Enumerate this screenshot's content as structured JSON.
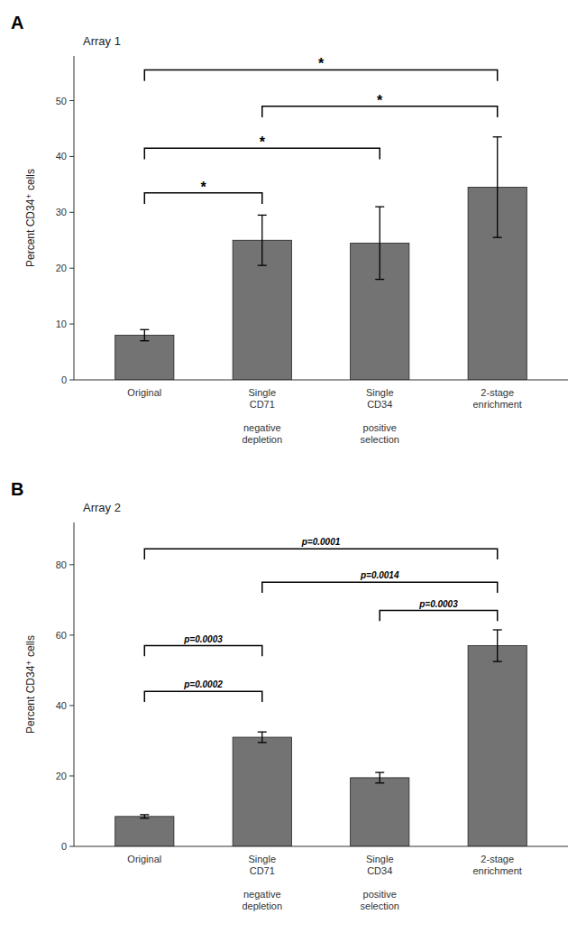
{
  "chart_data": [
    {
      "type": "bar",
      "panel_label": "A",
      "title": "Array 1",
      "categories": [
        "Original",
        "Single\nCD71\n\nnegative\ndepletion",
        "Single\nCD34\n\npositive\nselection",
        "2-stage\nenrichment"
      ],
      "values": [
        8.0,
        25.0,
        24.5,
        34.5
      ],
      "errors": [
        1.0,
        4.5,
        6.5,
        9.0
      ],
      "color": "#737373",
      "ylim": [
        0,
        58
      ],
      "yticks": [
        0,
        10,
        20,
        30,
        40,
        50
      ],
      "ylabel": "Percent CD34⁺ cells",
      "grid": false,
      "annotations": [
        {
          "from": 0,
          "to": 1,
          "y": 33.5,
          "drop": 2.0,
          "label": "*"
        },
        {
          "from": 0,
          "to": 2,
          "y": 41.5,
          "drop": 2.0,
          "label": "*"
        },
        {
          "from": 1,
          "to": 3,
          "y": 49.0,
          "drop": 2.0,
          "label": "*"
        },
        {
          "from": 0,
          "to": 3,
          "y": 55.5,
          "drop": 2.0,
          "label": "*"
        }
      ]
    },
    {
      "type": "bar",
      "panel_label": "B",
      "title": "Array 2",
      "categories": [
        "Original",
        "Single\nCD71\n\nnegative\ndepletion",
        "Single\nCD34\n\npositive\nselection",
        "2-stage\nenrichment"
      ],
      "values": [
        8.5,
        31.0,
        19.5,
        57.0
      ],
      "errors": [
        0.5,
        1.5,
        1.5,
        4.5
      ],
      "color": "#737373",
      "ylim": [
        0,
        92
      ],
      "yticks": [
        0,
        20,
        40,
        60,
        80
      ],
      "ylabel": "Percent CD34⁺ cells",
      "grid": false,
      "annotations": [
        {
          "from": 0,
          "to": 1,
          "y": 44.0,
          "drop": 3.0,
          "label": "p=0.0002"
        },
        {
          "from": 0,
          "to": 1,
          "y": 57.0,
          "drop": 3.0,
          "label": "p=0.0003"
        },
        {
          "from": 1,
          "to": 3,
          "y": 75.0,
          "drop": 3.0,
          "label": "p=0.0014"
        },
        {
          "from": 2,
          "to": 3,
          "y": 67.0,
          "drop": 3.0,
          "label": "p=0.0003"
        },
        {
          "from": 0,
          "to": 3,
          "y": 84.5,
          "drop": 3.0,
          "label": "p=0.0001"
        }
      ]
    }
  ]
}
